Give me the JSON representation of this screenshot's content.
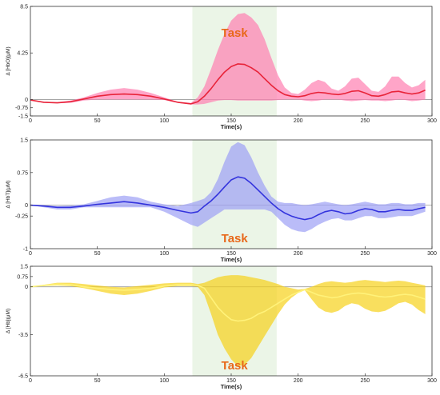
{
  "chart_data": [
    {
      "type": "line",
      "ylabel": "Δ [HbO](μM)",
      "xlabel": "Time(s)",
      "xlim": [
        0,
        300
      ],
      "ylim": [
        -1.5,
        8.5
      ],
      "xticks": [
        "0",
        "50",
        "100",
        "150",
        "200",
        "250",
        "300"
      ],
      "yticks": [
        "-1.5",
        "-0.75",
        "0",
        "4.25",
        "8.5"
      ],
      "ytick_values": [
        -1.5,
        -0.75,
        0,
        4.25,
        8.5
      ],
      "task_region": [
        121,
        184
      ],
      "task_label": "Task",
      "task_label_pos": "top",
      "line_color": "#e8243a",
      "band_color": "#ff7fb0",
      "task_label_color": "#e8681a",
      "series": [
        {
          "x": [
            0,
            10,
            20,
            30,
            40,
            50,
            60,
            70,
            80,
            90,
            100,
            110,
            120,
            125,
            130,
            135,
            140,
            145,
            150,
            155,
            160,
            165,
            170,
            175,
            180,
            185,
            190,
            195,
            200,
            205,
            210,
            215,
            220,
            225,
            230,
            235,
            240,
            245,
            250,
            255,
            260,
            265,
            270,
            275,
            280,
            285,
            290,
            295
          ],
          "mean": [
            -0.05,
            -0.25,
            -0.3,
            -0.2,
            0.05,
            0.3,
            0.45,
            0.5,
            0.45,
            0.3,
            0.05,
            -0.25,
            -0.4,
            -0.2,
            0.3,
            1.0,
            1.8,
            2.5,
            3.0,
            3.25,
            3.2,
            2.9,
            2.5,
            1.9,
            1.3,
            0.8,
            0.45,
            0.3,
            0.25,
            0.35,
            0.55,
            0.65,
            0.6,
            0.5,
            0.45,
            0.55,
            0.75,
            0.8,
            0.6,
            0.35,
            0.3,
            0.45,
            0.7,
            0.75,
            0.6,
            0.5,
            0.6,
            0.85
          ],
          "lower": [
            -0.05,
            -0.3,
            -0.35,
            -0.3,
            -0.1,
            0.0,
            0.0,
            0.0,
            0.0,
            0.0,
            -0.05,
            -0.3,
            -0.45,
            -0.45,
            -0.4,
            -0.25,
            -0.1,
            -0.05,
            -0.05,
            -0.1,
            -0.1,
            -0.1,
            -0.1,
            -0.1,
            -0.1,
            -0.05,
            0.0,
            0.0,
            0.0,
            -0.1,
            -0.15,
            -0.1,
            0.0,
            0.0,
            0.0,
            -0.1,
            -0.15,
            -0.1,
            -0.05,
            -0.1,
            -0.1,
            -0.15,
            -0.1,
            0.0,
            -0.05,
            -0.15,
            -0.1,
            0.0
          ],
          "upper": [
            -0.05,
            -0.2,
            -0.25,
            -0.1,
            0.2,
            0.6,
            0.9,
            1.05,
            0.9,
            0.6,
            0.2,
            -0.2,
            -0.3,
            0.2,
            1.2,
            2.8,
            4.5,
            6.0,
            7.2,
            7.8,
            7.9,
            7.5,
            6.8,
            5.5,
            3.8,
            2.2,
            1.1,
            0.6,
            0.5,
            0.9,
            1.5,
            1.8,
            1.6,
            1.0,
            0.8,
            1.2,
            1.9,
            2.0,
            1.4,
            0.8,
            0.7,
            1.2,
            2.1,
            2.1,
            1.5,
            1.1,
            1.3,
            1.8
          ]
        }
      ]
    },
    {
      "type": "line",
      "ylabel": "Δ [HbT](μM)",
      "xlabel": "Time(s)",
      "xlim": [
        0,
        300
      ],
      "ylim": [
        -1,
        1.5
      ],
      "xticks": [
        "0",
        "50",
        "100",
        "150",
        "200",
        "250",
        "300"
      ],
      "yticks": [
        "-1",
        "-0.25",
        "0",
        "0.75",
        "1.5"
      ],
      "ytick_values": [
        -1,
        -0.25,
        0,
        0.75,
        1.5
      ],
      "task_region": [
        121,
        184
      ],
      "task_label": "Task",
      "task_label_pos": "bottom",
      "line_color": "#3333dd",
      "band_color": "#9da0f5",
      "task_label_color": "#e8681a",
      "series": [
        {
          "x": [
            0,
            10,
            20,
            30,
            40,
            50,
            60,
            70,
            80,
            90,
            100,
            110,
            120,
            125,
            130,
            135,
            140,
            145,
            150,
            155,
            160,
            165,
            170,
            175,
            180,
            185,
            190,
            195,
            200,
            205,
            210,
            215,
            220,
            225,
            230,
            235,
            240,
            245,
            250,
            255,
            260,
            265,
            270,
            275,
            280,
            285,
            290,
            295
          ],
          "mean": [
            0.0,
            -0.02,
            -0.05,
            -0.05,
            -0.02,
            0.02,
            0.05,
            0.08,
            0.05,
            0.0,
            -0.05,
            -0.12,
            -0.18,
            -0.15,
            -0.02,
            0.1,
            0.25,
            0.42,
            0.58,
            0.65,
            0.62,
            0.5,
            0.35,
            0.2,
            0.05,
            -0.08,
            -0.18,
            -0.25,
            -0.3,
            -0.33,
            -0.3,
            -0.22,
            -0.15,
            -0.12,
            -0.15,
            -0.2,
            -0.18,
            -0.12,
            -0.08,
            -0.1,
            -0.15,
            -0.15,
            -0.12,
            -0.1,
            -0.12,
            -0.12,
            -0.08,
            -0.05
          ],
          "lower": [
            0.0,
            -0.05,
            -0.1,
            -0.1,
            -0.05,
            -0.05,
            -0.05,
            -0.05,
            -0.05,
            -0.05,
            -0.15,
            -0.3,
            -0.45,
            -0.5,
            -0.4,
            -0.3,
            -0.2,
            -0.1,
            -0.1,
            -0.1,
            -0.1,
            -0.1,
            -0.1,
            -0.1,
            -0.15,
            -0.3,
            -0.45,
            -0.55,
            -0.6,
            -0.62,
            -0.55,
            -0.45,
            -0.38,
            -0.32,
            -0.3,
            -0.35,
            -0.35,
            -0.3,
            -0.25,
            -0.25,
            -0.3,
            -0.3,
            -0.28,
            -0.25,
            -0.25,
            -0.25,
            -0.2,
            -0.15
          ],
          "upper": [
            0.0,
            0.0,
            -0.02,
            -0.01,
            0.02,
            0.1,
            0.18,
            0.22,
            0.18,
            0.08,
            0.02,
            -0.02,
            0.05,
            0.1,
            0.15,
            0.3,
            0.6,
            1.0,
            1.35,
            1.45,
            1.38,
            1.1,
            0.75,
            0.45,
            0.2,
            0.08,
            0.05,
            0.05,
            0.02,
            0.0,
            0.02,
            0.05,
            0.08,
            0.05,
            0.02,
            0.0,
            0.02,
            0.05,
            0.08,
            0.05,
            0.02,
            0.02,
            0.05,
            0.05,
            0.02,
            0.02,
            0.05,
            0.05
          ]
        }
      ]
    },
    {
      "type": "line",
      "ylabel": "Δ [Hb](μM)",
      "xlabel": "Time(s)",
      "xlim": [
        0,
        300
      ],
      "ylim": [
        -6.5,
        1.5
      ],
      "xticks": [
        "0",
        "50",
        "100",
        "150",
        "200",
        "250",
        "300"
      ],
      "yticks": [
        "-6.5",
        "-3.5",
        "0",
        "0.75",
        "1.5"
      ],
      "ytick_values": [
        -6.5,
        -3.5,
        0,
        0.75,
        1.5
      ],
      "task_region": [
        121,
        184
      ],
      "task_label": "Task",
      "task_label_pos": "bottom",
      "line_color": "#fff27a",
      "band_color": "#f7d21a",
      "task_label_color": "#e8681a",
      "series": [
        {
          "x": [
            0,
            10,
            20,
            30,
            40,
            50,
            60,
            70,
            80,
            90,
            100,
            110,
            120,
            125,
            130,
            135,
            140,
            145,
            150,
            155,
            160,
            165,
            170,
            175,
            180,
            185,
            190,
            195,
            200,
            205,
            210,
            215,
            220,
            225,
            230,
            235,
            240,
            245,
            250,
            255,
            260,
            265,
            270,
            275,
            280,
            285,
            290,
            295
          ],
          "mean": [
            0.0,
            0.1,
            0.2,
            0.15,
            0.0,
            -0.1,
            -0.2,
            -0.25,
            -0.2,
            -0.1,
            0.05,
            0.15,
            0.15,
            0.1,
            -0.1,
            -0.8,
            -1.5,
            -2.0,
            -2.4,
            -2.5,
            -2.45,
            -2.3,
            -2.0,
            -1.8,
            -1.5,
            -1.2,
            -0.9,
            -0.6,
            -0.4,
            -0.2,
            -0.4,
            -0.6,
            -0.7,
            -0.8,
            -0.75,
            -0.6,
            -0.5,
            -0.45,
            -0.5,
            -0.6,
            -0.7,
            -0.75,
            -0.7,
            -0.6,
            -0.55,
            -0.6,
            -0.75,
            -0.9
          ],
          "lower": [
            0.0,
            0.05,
            0.1,
            0.05,
            -0.1,
            -0.3,
            -0.5,
            -0.6,
            -0.5,
            -0.3,
            -0.05,
            0.05,
            0.05,
            0.0,
            -0.6,
            -2.0,
            -3.5,
            -4.5,
            -5.3,
            -5.8,
            -5.7,
            -5.2,
            -4.4,
            -3.6,
            -2.8,
            -2.0,
            -1.3,
            -0.8,
            -0.45,
            -0.25,
            -0.9,
            -1.5,
            -1.8,
            -1.9,
            -1.75,
            -1.4,
            -1.2,
            -1.3,
            -1.6,
            -1.8,
            -1.85,
            -1.75,
            -1.5,
            -1.2,
            -1.1,
            -1.3,
            -1.7,
            -2.0
          ],
          "upper": [
            0.0,
            0.15,
            0.3,
            0.3,
            0.2,
            0.1,
            0.0,
            -0.05,
            0.05,
            0.15,
            0.25,
            0.3,
            0.3,
            0.2,
            0.3,
            0.5,
            0.7,
            0.8,
            0.85,
            0.85,
            0.8,
            0.7,
            0.6,
            0.5,
            0.35,
            0.2,
            0.0,
            -0.1,
            -0.2,
            -0.15,
            0.0,
            0.2,
            0.35,
            0.4,
            0.35,
            0.3,
            0.35,
            0.45,
            0.5,
            0.45,
            0.4,
            0.35,
            0.4,
            0.45,
            0.4,
            0.3,
            0.2,
            0.1
          ]
        }
      ]
    }
  ]
}
